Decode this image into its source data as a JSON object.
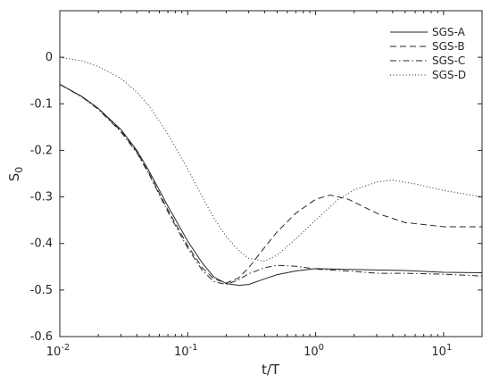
{
  "chart_data": {
    "type": "line",
    "title": "",
    "xlabel": "t/T",
    "ylabel": "S",
    "ylabel_sub": "0",
    "x_scale": "log",
    "xlim": [
      0.01,
      20
    ],
    "ylim": [
      -0.6,
      0.1
    ],
    "x_ticks": [
      0.01,
      0.1,
      1,
      10
    ],
    "x_tick_labels": [
      {
        "base": "10",
        "exp": "-2"
      },
      {
        "base": "10",
        "exp": "-1"
      },
      {
        "base": "10",
        "exp": "0"
      },
      {
        "base": "10",
        "exp": "1"
      }
    ],
    "y_ticks": [
      0,
      -0.1,
      -0.2,
      -0.3,
      -0.4,
      -0.5,
      -0.6
    ],
    "y_tick_labels": [
      "0",
      "-0.1",
      "-0.2",
      "-0.3",
      "-0.4",
      "-0.5",
      "-0.6"
    ],
    "grid": false,
    "legend_position": "top-right",
    "series": [
      {
        "name": "SGS-A",
        "style": "solid",
        "color": "#262626",
        "points": [
          [
            0.01,
            -0.058
          ],
          [
            0.015,
            -0.085
          ],
          [
            0.02,
            -0.11
          ],
          [
            0.03,
            -0.155
          ],
          [
            0.04,
            -0.2
          ],
          [
            0.05,
            -0.245
          ],
          [
            0.07,
            -0.32
          ],
          [
            0.1,
            -0.395
          ],
          [
            0.13,
            -0.442
          ],
          [
            0.16,
            -0.472
          ],
          [
            0.2,
            -0.486
          ],
          [
            0.25,
            -0.49
          ],
          [
            0.3,
            -0.488
          ],
          [
            0.4,
            -0.476
          ],
          [
            0.5,
            -0.467
          ],
          [
            0.7,
            -0.459
          ],
          [
            1,
            -0.454
          ],
          [
            2,
            -0.456
          ],
          [
            5,
            -0.458
          ],
          [
            10,
            -0.462
          ],
          [
            20,
            -0.463
          ]
        ]
      },
      {
        "name": "SGS-B",
        "style": "dashed",
        "color": "#262626",
        "points": [
          [
            0.01,
            -0.058
          ],
          [
            0.015,
            -0.085
          ],
          [
            0.02,
            -0.11
          ],
          [
            0.03,
            -0.158
          ],
          [
            0.04,
            -0.203
          ],
          [
            0.05,
            -0.25
          ],
          [
            0.07,
            -0.328
          ],
          [
            0.1,
            -0.405
          ],
          [
            0.13,
            -0.452
          ],
          [
            0.16,
            -0.476
          ],
          [
            0.2,
            -0.485
          ],
          [
            0.25,
            -0.474
          ],
          [
            0.3,
            -0.452
          ],
          [
            0.4,
            -0.408
          ],
          [
            0.5,
            -0.375
          ],
          [
            0.7,
            -0.335
          ],
          [
            1,
            -0.305
          ],
          [
            1.3,
            -0.296
          ],
          [
            1.8,
            -0.305
          ],
          [
            3,
            -0.335
          ],
          [
            5,
            -0.355
          ],
          [
            10,
            -0.364
          ],
          [
            20,
            -0.364
          ]
        ]
      },
      {
        "name": "SGS-C",
        "style": "dashdot",
        "color": "#262626",
        "points": [
          [
            0.01,
            -0.058
          ],
          [
            0.015,
            -0.086
          ],
          [
            0.02,
            -0.112
          ],
          [
            0.03,
            -0.16
          ],
          [
            0.04,
            -0.205
          ],
          [
            0.05,
            -0.252
          ],
          [
            0.07,
            -0.332
          ],
          [
            0.1,
            -0.41
          ],
          [
            0.13,
            -0.458
          ],
          [
            0.16,
            -0.482
          ],
          [
            0.2,
            -0.488
          ],
          [
            0.25,
            -0.478
          ],
          [
            0.3,
            -0.465
          ],
          [
            0.4,
            -0.452
          ],
          [
            0.5,
            -0.447
          ],
          [
            0.7,
            -0.449
          ],
          [
            1,
            -0.455
          ],
          [
            2,
            -0.46
          ],
          [
            3,
            -0.464
          ],
          [
            5,
            -0.464
          ],
          [
            10,
            -0.466
          ],
          [
            20,
            -0.47
          ]
        ]
      },
      {
        "name": "SGS-D",
        "style": "dotted",
        "color": "#262626",
        "points": [
          [
            0.01,
            0.0
          ],
          [
            0.015,
            -0.008
          ],
          [
            0.02,
            -0.02
          ],
          [
            0.03,
            -0.045
          ],
          [
            0.04,
            -0.075
          ],
          [
            0.05,
            -0.105
          ],
          [
            0.07,
            -0.165
          ],
          [
            0.1,
            -0.24
          ],
          [
            0.13,
            -0.3
          ],
          [
            0.16,
            -0.345
          ],
          [
            0.2,
            -0.385
          ],
          [
            0.25,
            -0.415
          ],
          [
            0.3,
            -0.432
          ],
          [
            0.4,
            -0.438
          ],
          [
            0.5,
            -0.425
          ],
          [
            0.7,
            -0.39
          ],
          [
            1,
            -0.35
          ],
          [
            1.5,
            -0.305
          ],
          [
            2,
            -0.285
          ],
          [
            3,
            -0.268
          ],
          [
            4,
            -0.264
          ],
          [
            6,
            -0.272
          ],
          [
            10,
            -0.286
          ],
          [
            20,
            -0.3
          ]
        ]
      }
    ]
  }
}
